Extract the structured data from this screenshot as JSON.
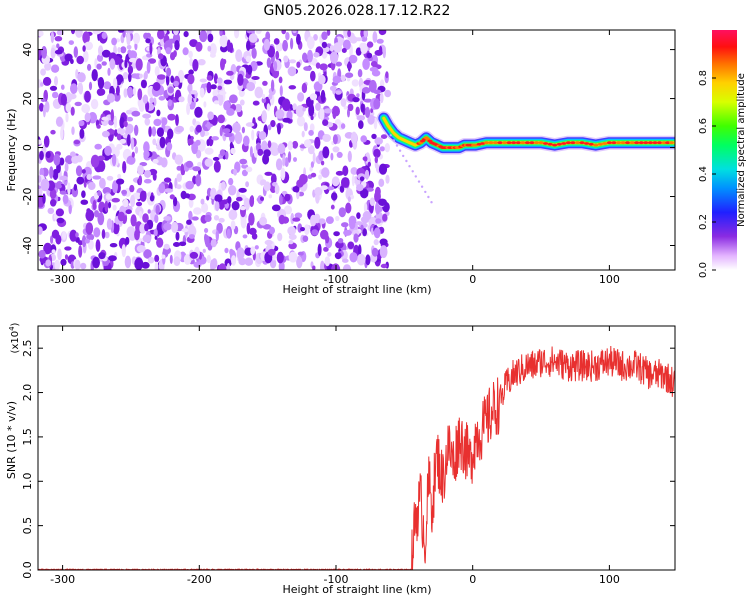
{
  "chart_data": [
    {
      "type": "heatmap",
      "title": "GN05.2026.028.17.12.R22",
      "xlabel": "Height of straight line (km)",
      "ylabel": "Frequency (Hz)",
      "xlim": [
        -318,
        148
      ],
      "ylim": [
        -50,
        48
      ],
      "x_ticks": [
        -300,
        -200,
        -100,
        0,
        100
      ],
      "y_ticks": [
        -40,
        -20,
        0,
        20,
        40
      ],
      "noise_region_x": [
        -318,
        -62
      ],
      "ridge": {
        "x": [
          -65,
          -62,
          -58,
          -54,
          -50,
          -46,
          -42,
          -38,
          -34,
          -30,
          -26,
          -22,
          -18,
          -14,
          -10,
          -6,
          -2,
          2,
          10,
          20,
          30,
          40,
          50,
          60,
          70,
          80,
          90,
          100,
          110,
          120,
          130,
          140,
          148
        ],
        "frequency": [
          12,
          9,
          6,
          4,
          3,
          2,
          1,
          2,
          4,
          2,
          1,
          0,
          0,
          0,
          0,
          1,
          1,
          1,
          2,
          2,
          2,
          2,
          2,
          1,
          2,
          2,
          1,
          2,
          2,
          2,
          2,
          2,
          2
        ]
      },
      "colorbar": {
        "label": "Normalized spectral amplitude",
        "range": [
          0,
          1
        ],
        "ticks": [
          0.0,
          0.2,
          0.4,
          0.6,
          0.8
        ],
        "tick_labels": [
          "0.0",
          "0.2",
          "0.4",
          "0.6",
          "0.8"
        ]
      }
    },
    {
      "type": "line",
      "xlabel": "Height of straight line (km)",
      "ylabel": "SNR (10 * v/v)",
      "scale_label": "(x10",
      "scale_exponent": "4",
      "xlim": [
        -318,
        148
      ],
      "ylim": [
        0,
        2.75
      ],
      "x_ticks": [
        -300,
        -200,
        -100,
        0,
        100
      ],
      "y_ticks": [
        0.0,
        0.5,
        1.0,
        1.5,
        2.0,
        2.5
      ],
      "y_tick_labels": [
        "0.0",
        "0.5",
        "1.0",
        "1.5",
        "2.0",
        "2.5"
      ],
      "series": [
        {
          "color": "#e8302f",
          "x": [
            -318,
            -100,
            -45,
            -42,
            -38,
            -35,
            -32,
            -30,
            -26,
            -22,
            -18,
            -14,
            -10,
            -6,
            -2,
            2,
            8,
            15,
            20,
            25,
            30,
            35,
            40,
            45,
            50,
            60,
            70,
            80,
            90,
            100,
            110,
            120,
            130,
            140,
            148
          ],
          "y": [
            0.0,
            0.0,
            0.0,
            0.6,
            0.8,
            0.3,
            1.0,
            0.7,
            1.3,
            1.0,
            1.4,
            1.2,
            1.5,
            1.4,
            1.2,
            1.5,
            1.6,
            1.8,
            1.9,
            2.1,
            2.2,
            2.25,
            2.3,
            2.3,
            2.35,
            2.35,
            2.3,
            2.3,
            2.3,
            2.35,
            2.3,
            2.3,
            2.2,
            2.2,
            2.1
          ]
        }
      ]
    }
  ]
}
